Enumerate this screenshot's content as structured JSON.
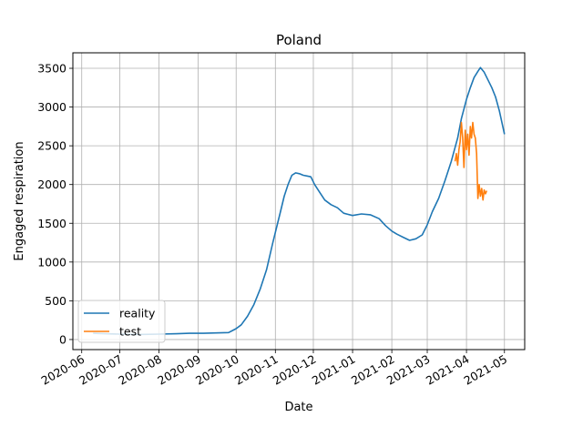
{
  "chart_data": {
    "type": "line",
    "title": "Poland",
    "xlabel": "Date",
    "ylabel": "Engaged respiration",
    "xlim": [
      "2020-05-25",
      "2021-05-17"
    ],
    "ylim": [
      -130,
      3700
    ],
    "grid": true,
    "legend_position": "lower-left",
    "x_ticks": [
      "2020-06",
      "2020-07",
      "2020-08",
      "2020-09",
      "2020-10",
      "2020-11",
      "2020-12",
      "2021-01",
      "2021-02",
      "2021-03",
      "2021-04",
      "2021-05"
    ],
    "y_ticks": [
      0,
      500,
      1000,
      1500,
      2000,
      2500,
      3000,
      3500
    ],
    "series": [
      {
        "name": "reality",
        "color": "#1f77b4",
        "points": [
          [
            "2020-06-10",
            80
          ],
          [
            "2020-06-20",
            75
          ],
          [
            "2020-07-01",
            70
          ],
          [
            "2020-07-15",
            65
          ],
          [
            "2020-08-01",
            70
          ],
          [
            "2020-08-15",
            75
          ],
          [
            "2020-08-25",
            80
          ],
          [
            "2020-09-05",
            80
          ],
          [
            "2020-09-15",
            85
          ],
          [
            "2020-09-25",
            90
          ],
          [
            "2020-10-01",
            140
          ],
          [
            "2020-10-05",
            190
          ],
          [
            "2020-10-10",
            300
          ],
          [
            "2020-10-15",
            450
          ],
          [
            "2020-10-20",
            650
          ],
          [
            "2020-10-25",
            900
          ],
          [
            "2020-10-30",
            1250
          ],
          [
            "2020-11-02",
            1450
          ],
          [
            "2020-11-05",
            1650
          ],
          [
            "2020-11-08",
            1850
          ],
          [
            "2020-11-11",
            2000
          ],
          [
            "2020-11-14",
            2120
          ],
          [
            "2020-11-17",
            2150
          ],
          [
            "2020-11-20",
            2140
          ],
          [
            "2020-11-23",
            2120
          ],
          [
            "2020-11-26",
            2110
          ],
          [
            "2020-11-29",
            2100
          ],
          [
            "2020-12-02",
            2000
          ],
          [
            "2020-12-06",
            1900
          ],
          [
            "2020-12-10",
            1800
          ],
          [
            "2020-12-15",
            1740
          ],
          [
            "2020-12-20",
            1700
          ],
          [
            "2020-12-25",
            1630
          ],
          [
            "2021-01-01",
            1600
          ],
          [
            "2021-01-08",
            1620
          ],
          [
            "2021-01-15",
            1610
          ],
          [
            "2021-01-22",
            1560
          ],
          [
            "2021-01-27",
            1470
          ],
          [
            "2021-02-01",
            1400
          ],
          [
            "2021-02-05",
            1360
          ],
          [
            "2021-02-10",
            1320
          ],
          [
            "2021-02-15",
            1280
          ],
          [
            "2021-02-20",
            1300
          ],
          [
            "2021-02-25",
            1350
          ],
          [
            "2021-03-01",
            1480
          ],
          [
            "2021-03-05",
            1650
          ],
          [
            "2021-03-10",
            1820
          ],
          [
            "2021-03-15",
            2050
          ],
          [
            "2021-03-20",
            2300
          ],
          [
            "2021-03-25",
            2600
          ],
          [
            "2021-03-28",
            2850
          ],
          [
            "2021-04-01",
            3100
          ],
          [
            "2021-04-04",
            3250
          ],
          [
            "2021-04-07",
            3380
          ],
          [
            "2021-04-10",
            3460
          ],
          [
            "2021-04-12",
            3510
          ],
          [
            "2021-04-15",
            3450
          ],
          [
            "2021-04-18",
            3350
          ],
          [
            "2021-04-21",
            3250
          ],
          [
            "2021-04-24",
            3130
          ],
          [
            "2021-04-27",
            2950
          ],
          [
            "2021-05-01",
            2650
          ]
        ]
      },
      {
        "name": "test",
        "color": "#ff7f0e",
        "points": [
          [
            "2021-03-23",
            2300
          ],
          [
            "2021-03-24",
            2400
          ],
          [
            "2021-03-25",
            2250
          ],
          [
            "2021-03-26",
            2450
          ],
          [
            "2021-03-27",
            2550
          ],
          [
            "2021-03-28",
            2800
          ],
          [
            "2021-03-29",
            2600
          ],
          [
            "2021-03-30",
            2220
          ],
          [
            "2021-03-31",
            2700
          ],
          [
            "2021-04-01",
            2450
          ],
          [
            "2021-04-02",
            2650
          ],
          [
            "2021-04-03",
            2380
          ],
          [
            "2021-04-04",
            2750
          ],
          [
            "2021-04-05",
            2600
          ],
          [
            "2021-04-06",
            2800
          ],
          [
            "2021-04-07",
            2650
          ],
          [
            "2021-04-08",
            2600
          ],
          [
            "2021-04-09",
            2400
          ],
          [
            "2021-04-10",
            1820
          ],
          [
            "2021-04-11",
            2000
          ],
          [
            "2021-04-12",
            1850
          ],
          [
            "2021-04-13",
            1950
          ],
          [
            "2021-04-14",
            1800
          ],
          [
            "2021-04-15",
            1930
          ],
          [
            "2021-04-16",
            1880
          ],
          [
            "2021-04-17",
            1920
          ]
        ]
      }
    ]
  }
}
